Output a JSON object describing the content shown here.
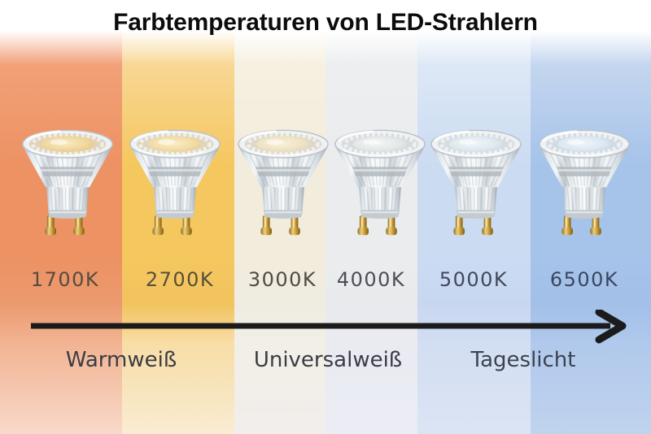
{
  "title": "Farbtemperaturen von LED-Strahlern",
  "axis": {
    "arrow_color": "#1b1b1b",
    "zones": [
      {
        "label": "Warmweiß"
      },
      {
        "label": "Universalweiß"
      },
      {
        "label": "Tageslicht"
      }
    ]
  },
  "columns": [
    {
      "kelvin": "1700K",
      "label_color": "#564b40",
      "band": {
        "top": "#f2a078",
        "mid": "#ed9263",
        "label_row": "#eb9a6f",
        "low": "#f2b392",
        "bottom": "#f8d9c9"
      },
      "bulb": {
        "glow_center": "#f9ecc6",
        "glow_mid": "#f0d79d",
        "glow_edge": "#e0ba7c",
        "face_ring": "#ded3bc"
      }
    },
    {
      "kelvin": "2700K",
      "label_color": "#584e3b",
      "band": {
        "top": "#f8d795",
        "mid": "#f5c75f",
        "label_row": "#f2c35e",
        "low": "#f8dda6",
        "bottom": "#f9ecd2"
      },
      "bulb": {
        "glow_center": "#faeec9",
        "glow_mid": "#f2dca6",
        "glow_edge": "#e4c287",
        "face_ring": "#ded6c2"
      }
    },
    {
      "kelvin": "3000K",
      "label_color": "#514c42",
      "band": {
        "top": "#f6f0e0",
        "mid": "#f2ecdc",
        "label_row": "#efece2",
        "low": "#f2efe6",
        "bottom": "#f1eeec"
      },
      "bulb": {
        "glow_center": "#f9f2da",
        "glow_mid": "#eee3c4",
        "glow_edge": "#ddd2b2",
        "face_ring": "#dcd8cb"
      }
    },
    {
      "kelvin": "4000K",
      "label_color": "#4b4e55",
      "band": {
        "top": "#eceef0",
        "mid": "#eaecee",
        "label_row": "#e9eaec",
        "low": "#eaebf1",
        "bottom": "#ebecf5"
      },
      "bulb": {
        "glow_center": "#f5f7f6",
        "glow_mid": "#e4e8e8",
        "glow_edge": "#d0d7d8",
        "face_ring": "#d8dbdc"
      }
    },
    {
      "kelvin": "5000K",
      "label_color": "#41485c",
      "band": {
        "top": "#dde8f6",
        "mid": "#cbdbf2",
        "label_row": "#c8d7f0",
        "low": "#d2def2",
        "bottom": "#dce4f4"
      },
      "bulb": {
        "glow_center": "#f2f7fa",
        "glow_mid": "#e0e9ef",
        "glow_edge": "#c9d5df",
        "face_ring": "#d5dce2"
      }
    },
    {
      "kelvin": "6500K",
      "label_color": "#3c4660",
      "band": {
        "top": "#c4d6ef",
        "mid": "#a6c3ea",
        "label_row": "#a2c0e8",
        "low": "#b0c9ec",
        "bottom": "#c0d3ee"
      },
      "bulb": {
        "glow_center": "#eef5fb",
        "glow_mid": "#dde8f2",
        "glow_edge": "#c4d2e0",
        "face_ring": "#d2dae2"
      }
    }
  ]
}
